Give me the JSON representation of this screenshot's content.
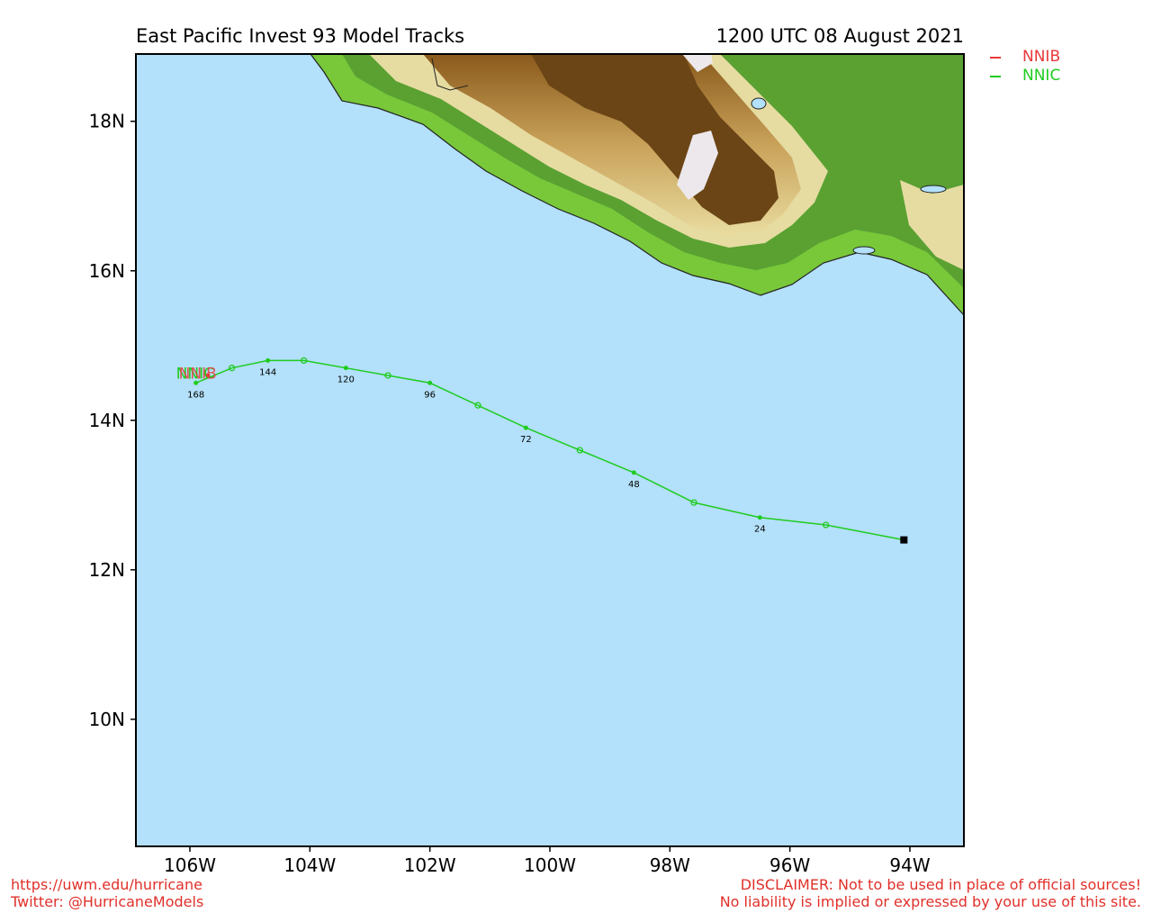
{
  "header": {
    "title": "East Pacific Invest 93 Model Tracks",
    "datetime": "1200 UTC 08 August 2021"
  },
  "legend": [
    {
      "label": "NNIB",
      "color": "#e8393b"
    },
    {
      "label": "NNIC",
      "color": "#1fcc1f"
    }
  ],
  "map": {
    "ocean_color": "#b3e0fa",
    "lon_range": [
      -106.9,
      -93.1
    ],
    "lat_range": [
      8.3,
      18.9
    ],
    "lon_ticks": [
      {
        "value": -106,
        "label": "106W"
      },
      {
        "value": -104,
        "label": "104W"
      },
      {
        "value": -102,
        "label": "102W"
      },
      {
        "value": -100,
        "label": "100W"
      },
      {
        "value": -98,
        "label": "98W"
      },
      {
        "value": -96,
        "label": "96W"
      },
      {
        "value": -94,
        "label": "94W"
      }
    ],
    "lat_ticks": [
      {
        "value": 18,
        "label": "18N"
      },
      {
        "value": 16,
        "label": "16N"
      },
      {
        "value": 14,
        "label": "14N"
      },
      {
        "value": 12,
        "label": "12N"
      },
      {
        "value": 10,
        "label": "10N"
      }
    ]
  },
  "chart_data": {
    "type": "line",
    "title": "East Pacific Invest 93 Model Tracks",
    "initial_position": {
      "lon": -94.1,
      "lat": 12.4
    },
    "series": [
      {
        "name": "NNIC",
        "color": "#1fcc1f",
        "points": [
          {
            "lon": -94.1,
            "lat": 12.4,
            "hour": 0
          },
          {
            "lon": -95.4,
            "lat": 12.6,
            "hour": 12
          },
          {
            "lon": -96.5,
            "lat": 12.7,
            "hour": 24,
            "label": "24"
          },
          {
            "lon": -97.6,
            "lat": 12.9,
            "hour": 36
          },
          {
            "lon": -98.6,
            "lat": 13.3,
            "hour": 48,
            "label": "48"
          },
          {
            "lon": -99.5,
            "lat": 13.6,
            "hour": 60
          },
          {
            "lon": -100.4,
            "lat": 13.9,
            "hour": 72,
            "label": "72"
          },
          {
            "lon": -101.2,
            "lat": 14.2,
            "hour": 84
          },
          {
            "lon": -102.0,
            "lat": 14.5,
            "hour": 96,
            "label": "96"
          },
          {
            "lon": -102.7,
            "lat": 14.6,
            "hour": 108
          },
          {
            "lon": -103.4,
            "lat": 14.7,
            "hour": 120,
            "label": "120"
          },
          {
            "lon": -104.1,
            "lat": 14.8,
            "hour": 132
          },
          {
            "lon": -104.7,
            "lat": 14.8,
            "hour": 144,
            "label": "144"
          },
          {
            "lon": -105.3,
            "lat": 14.7,
            "hour": 156
          },
          {
            "lon": -105.9,
            "lat": 14.5,
            "hour": 168,
            "label": "168"
          }
        ]
      },
      {
        "name": "NNIB",
        "color": "#e8393b",
        "points": [
          {
            "lon": -105.7,
            "lat": 14.6,
            "hour": 168
          }
        ]
      }
    ],
    "end_labels": [
      {
        "text": "NNIC",
        "color": "#1fcc1f"
      },
      {
        "text": "NNIB",
        "color": "#e8393b"
      }
    ]
  },
  "footer": {
    "url": "https://uwm.edu/hurricane",
    "twitter": "Twitter: @HurricaneModels",
    "disclaimer_line1": "DISCLAIMER: Not to be used in place of official sources!",
    "disclaimer_line2": "No liability is implied or expressed by your use of this site."
  }
}
